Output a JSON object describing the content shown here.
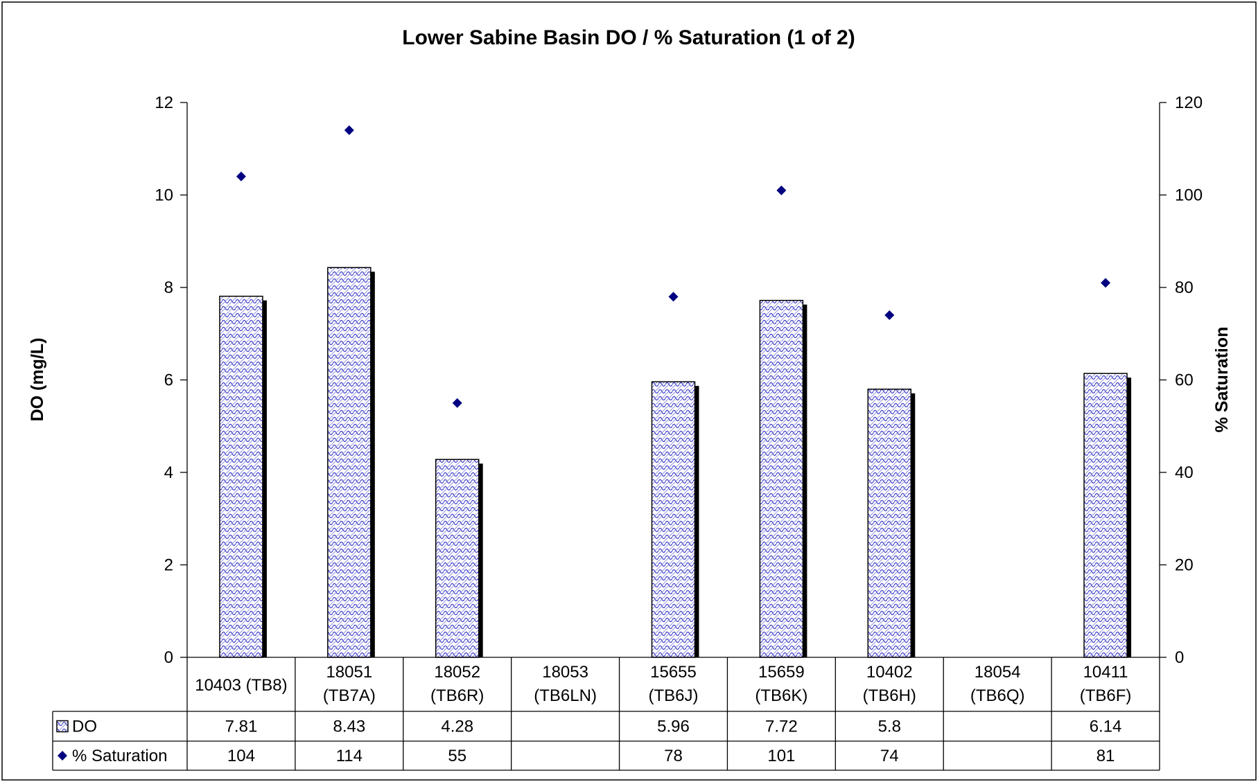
{
  "chart_data": {
    "type": "bar",
    "title": "Lower Sabine Basin DO / % Saturation (1 of 2)",
    "ylabel": "DO (mg/L)",
    "y2label": "% Saturation",
    "ylim": [
      0,
      12
    ],
    "y2lim": [
      0,
      120
    ],
    "yticks": [
      "0",
      "2",
      "4",
      "6",
      "8",
      "10",
      "12"
    ],
    "y2ticks": [
      "0",
      "20",
      "40",
      "60",
      "80",
      "100",
      "120"
    ],
    "categories": [
      [
        "10403 (TB8)"
      ],
      [
        "18051",
        "(TB7A)"
      ],
      [
        "18052",
        "(TB6R)"
      ],
      [
        "18053",
        "(TB6LN)"
      ],
      [
        "15655",
        "(TB6J)"
      ],
      [
        "15659",
        "(TB6K)"
      ],
      [
        "10402",
        "(TB6H)"
      ],
      [
        "18054",
        "(TB6Q)"
      ],
      [
        "10411",
        "(TB6F)"
      ]
    ],
    "series": [
      {
        "name": "DO",
        "type": "bar",
        "axis": "left",
        "color": "#3b3bc8",
        "values": [
          7.81,
          8.43,
          4.28,
          null,
          5.96,
          7.72,
          5.8,
          null,
          6.14
        ],
        "labels": [
          "7.81",
          "8.43",
          "4.28",
          "",
          "5.96",
          "7.72",
          "5.8",
          "",
          "6.14"
        ]
      },
      {
        "name": "% Saturation",
        "type": "scatter",
        "axis": "right",
        "color": "#000080",
        "values": [
          104,
          114,
          55,
          null,
          78,
          101,
          74,
          null,
          81
        ],
        "labels": [
          "104",
          "114",
          "55",
          "",
          "78",
          "101",
          "74",
          "",
          "81"
        ]
      }
    ],
    "legend": "data-table",
    "grid": false
  }
}
